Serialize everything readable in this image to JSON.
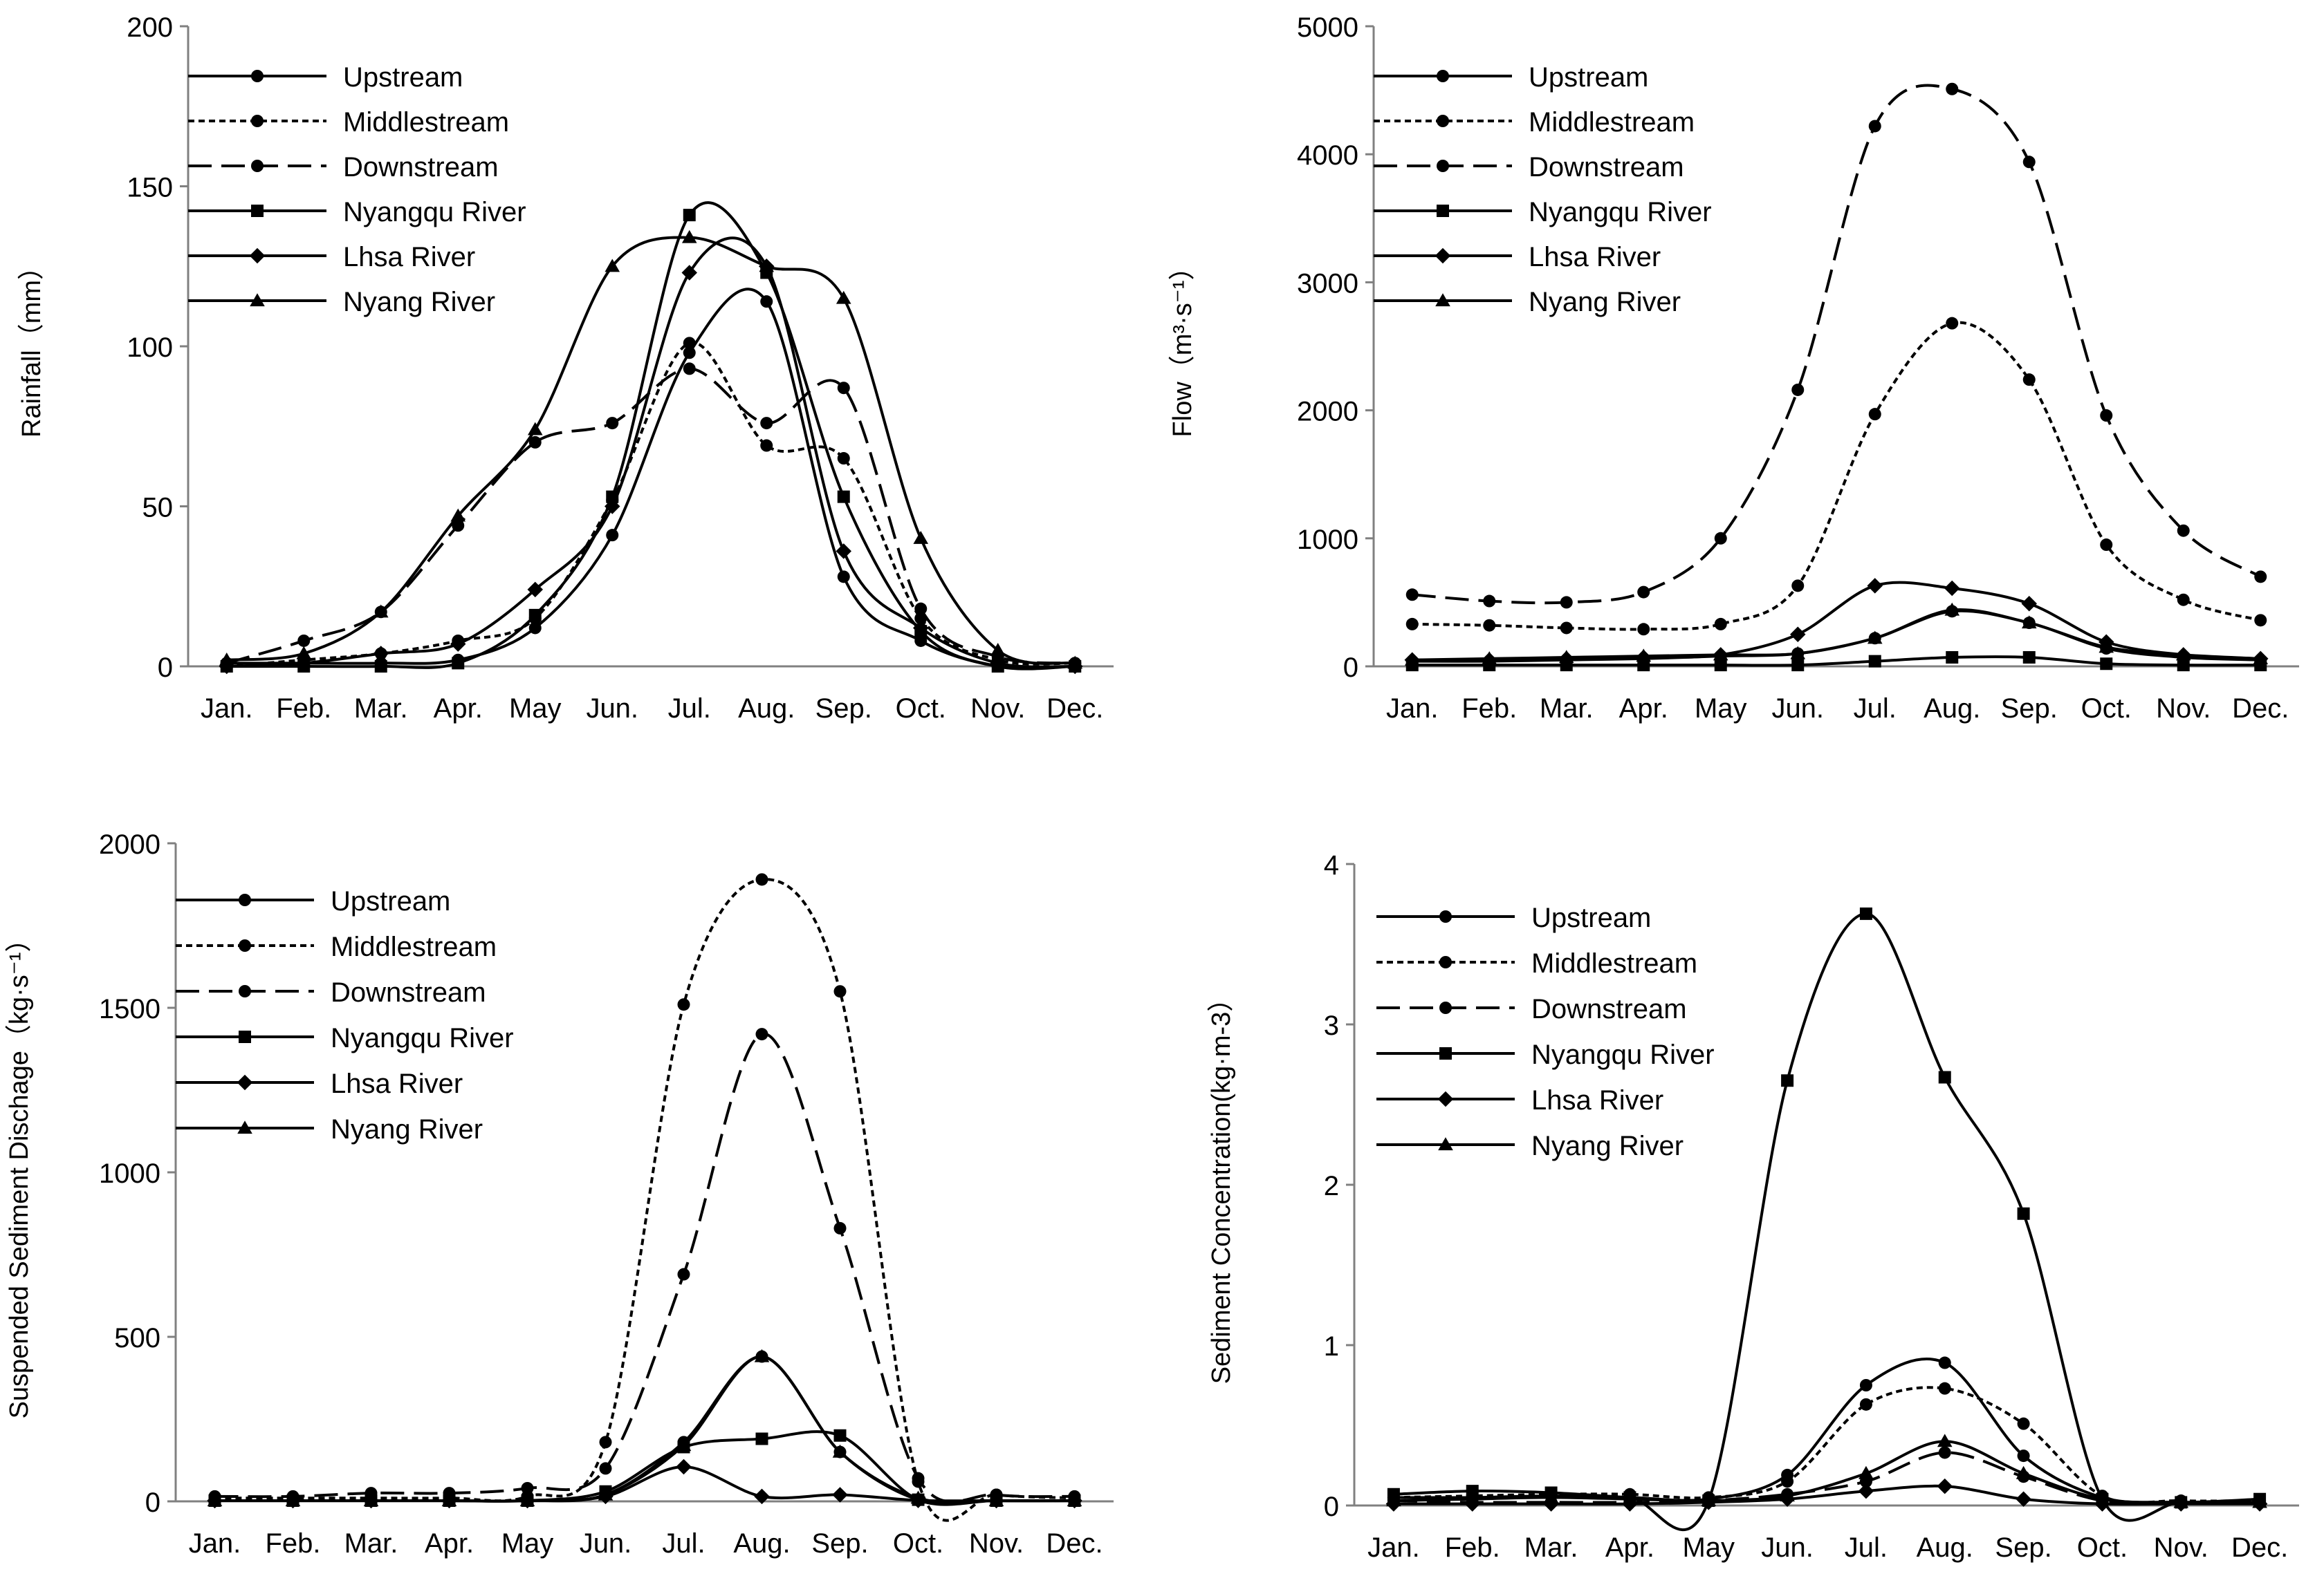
{
  "chart_data": [
    {
      "type": "line",
      "title": "",
      "xlabel": "",
      "ylabel": "Rainfall（mm）",
      "categories": [
        "Jan.",
        "Feb.",
        "Mar.",
        "Apr.",
        "May",
        "Jun.",
        "Jul.",
        "Aug.",
        "Sep.",
        "Oct.",
        "Nov.",
        "Dec."
      ],
      "ylim": [
        0,
        200
      ],
      "yticks": [
        0,
        50,
        100,
        150,
        200
      ],
      "grid": false,
      "legend": "top-left",
      "series": [
        {
          "name": "Upstream",
          "values": [
            1,
            1,
            1,
            2,
            12,
            41,
            98,
            114,
            28,
            8,
            0,
            0
          ]
        },
        {
          "name": "Middlestream",
          "values": [
            0,
            2,
            4,
            8,
            15,
            52,
            101,
            69,
            65,
            15,
            2,
            1
          ]
        },
        {
          "name": "Downstream",
          "values": [
            1,
            8,
            17,
            44,
            70,
            76,
            93,
            76,
            87,
            18,
            3,
            1
          ]
        },
        {
          "name": "Nyangqu River",
          "values": [
            0,
            0,
            0,
            1,
            16,
            53,
            141,
            123,
            53,
            11,
            0,
            0
          ]
        },
        {
          "name": "Lhsa River",
          "values": [
            0,
            1,
            4,
            7,
            24,
            50,
            123,
            125,
            36,
            12,
            1,
            0
          ]
        },
        {
          "name": "Nyang River",
          "values": [
            2,
            4,
            17,
            47,
            74,
            125,
            134,
            125,
            115,
            40,
            5,
            1
          ]
        }
      ]
    },
    {
      "type": "line",
      "title": "",
      "xlabel": "",
      "ylabel": "Flow（m³·s⁻¹）",
      "categories": [
        "Jan.",
        "Feb.",
        "Mar.",
        "Apr.",
        "May",
        "Jun.",
        "Jul.",
        "Aug.",
        "Sep.",
        "Oct.",
        "Nov.",
        "Dec."
      ],
      "ylim": [
        0,
        5000
      ],
      "yticks": [
        0,
        1000,
        2000,
        3000,
        4000,
        5000
      ],
      "grid": false,
      "legend": "top-left",
      "series": [
        {
          "name": "Upstream",
          "values": [
            40,
            40,
            50,
            60,
            80,
            100,
            220,
            430,
            340,
            140,
            70,
            50
          ]
        },
        {
          "name": "Middlestream",
          "values": [
            330,
            320,
            300,
            290,
            330,
            630,
            1970,
            2680,
            2240,
            950,
            520,
            360
          ]
        },
        {
          "name": "Downstream",
          "values": [
            560,
            510,
            500,
            580,
            1000,
            2160,
            4220,
            4510,
            3940,
            1960,
            1060,
            700
          ]
        },
        {
          "name": "Nyangqu River",
          "values": [
            10,
            10,
            10,
            10,
            10,
            10,
            40,
            70,
            70,
            20,
            10,
            10
          ]
        },
        {
          "name": "Lhsa River",
          "values": [
            50,
            50,
            60,
            70,
            90,
            250,
            630,
            610,
            490,
            190,
            90,
            60
          ]
        },
        {
          "name": "Nyang River",
          "values": [
            50,
            60,
            70,
            80,
            90,
            100,
            220,
            440,
            340,
            150,
            90,
            60
          ]
        }
      ]
    },
    {
      "type": "line",
      "title": "",
      "xlabel": "",
      "ylabel": "Suspended Sediment Dischage（kg·s⁻¹）",
      "categories": [
        "Jan.",
        "Feb.",
        "Mar.",
        "Apr.",
        "May",
        "Jun.",
        "Jul.",
        "Aug.",
        "Sep.",
        "Oct.",
        "Nov.",
        "Dec."
      ],
      "ylim": [
        0,
        2000
      ],
      "yticks": [
        0,
        500,
        1000,
        1500,
        2000
      ],
      "grid": false,
      "legend": "top-left",
      "series": [
        {
          "name": "Upstream",
          "values": [
            2,
            2,
            2,
            2,
            2,
            20,
            180,
            440,
            150,
            5,
            2,
            2
          ]
        },
        {
          "name": "Middlestream",
          "values": [
            10,
            10,
            10,
            10,
            15,
            180,
            1510,
            1890,
            1550,
            60,
            20,
            10
          ]
        },
        {
          "name": "Downstream",
          "values": [
            15,
            15,
            25,
            25,
            40,
            100,
            690,
            1420,
            830,
            70,
            20,
            15
          ]
        },
        {
          "name": "Nyangqu River",
          "values": [
            2,
            2,
            2,
            2,
            2,
            30,
            165,
            190,
            200,
            5,
            2,
            2
          ]
        },
        {
          "name": "Lhsa River",
          "values": [
            2,
            2,
            2,
            2,
            2,
            15,
            105,
            15,
            20,
            3,
            2,
            2
          ]
        },
        {
          "name": "Nyang River",
          "values": [
            2,
            2,
            2,
            2,
            2,
            20,
            170,
            440,
            150,
            10,
            2,
            2
          ]
        }
      ]
    },
    {
      "type": "line",
      "title": "",
      "xlabel": "",
      "ylabel": "Sediment Concentration(kg·m-3）",
      "categories": [
        "Jan.",
        "Feb.",
        "Mar.",
        "Apr.",
        "May",
        "Jun.",
        "Jul.",
        "Aug.",
        "Sep.",
        "Oct.",
        "Nov.",
        "Dec."
      ],
      "ylim": [
        0,
        4
      ],
      "yticks": [
        0,
        1,
        2,
        3,
        4
      ],
      "grid": false,
      "legend": "top-left",
      "series": [
        {
          "name": "Upstream",
          "values": [
            0.05,
            0.05,
            0.06,
            0.05,
            0.04,
            0.19,
            0.75,
            0.89,
            0.31,
            0.05,
            0.02,
            0.02
          ]
        },
        {
          "name": "Middlestream",
          "values": [
            0.05,
            0.06,
            0.07,
            0.07,
            0.05,
            0.15,
            0.63,
            0.73,
            0.51,
            0.06,
            0.03,
            0.03
          ]
        },
        {
          "name": "Downstream",
          "values": [
            0.03,
            0.02,
            0.02,
            0.02,
            0.03,
            0.07,
            0.15,
            0.33,
            0.18,
            0.03,
            0.02,
            0.02
          ]
        },
        {
          "name": "Nyangqu River",
          "values": [
            0.07,
            0.09,
            0.08,
            0.05,
            0.03,
            2.65,
            3.69,
            2.67,
            1.82,
            0.04,
            0.02,
            0.04
          ]
        },
        {
          "name": "Lhsa River",
          "values": [
            0.01,
            0.01,
            0.01,
            0.01,
            0.02,
            0.04,
            0.09,
            0.12,
            0.04,
            0.01,
            0.01,
            0.01
          ]
        },
        {
          "name": "Nyang River",
          "values": [
            0.03,
            0.04,
            0.05,
            0.04,
            0.03,
            0.06,
            0.2,
            0.4,
            0.2,
            0.04,
            0.02,
            0.02
          ]
        }
      ]
    }
  ],
  "legend_styles": [
    {
      "dash": "none",
      "marker": "circle"
    },
    {
      "dash": "dotted",
      "marker": "circle"
    },
    {
      "dash": "dashed",
      "marker": "circle"
    },
    {
      "dash": "none",
      "marker": "square"
    },
    {
      "dash": "none",
      "marker": "diamond"
    },
    {
      "dash": "none",
      "marker": "triangle"
    }
  ],
  "colors": {
    "line": "#000000",
    "axis": "#808080",
    "text": "#000000",
    "background": "#ffffff"
  }
}
